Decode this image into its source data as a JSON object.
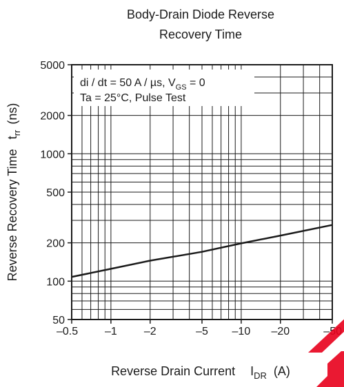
{
  "chart_data": {
    "type": "line",
    "title": [
      "Body-Drain Diode Reverse",
      "Recovery Time"
    ],
    "xlabel": "Reverse Drain Current",
    "xlabel_symbol": "I",
    "xlabel_symbol_sub": "DR",
    "xlabel_unit": "(A)",
    "ylabel": "Reverse Recovery Time",
    "ylabel_symbol": "t",
    "ylabel_symbol_sub": "rr",
    "ylabel_unit": "(ns)",
    "x_scale": "log",
    "y_scale": "log",
    "xlim": [
      -0.5,
      -50
    ],
    "ylim": [
      50,
      5000
    ],
    "x_ticks": [
      -0.5,
      -1,
      -2,
      -5,
      -10,
      -20,
      -50
    ],
    "x_tick_labels": [
      "–0.5",
      "–1",
      "–2",
      "–5",
      "–10",
      "–20",
      "–50"
    ],
    "y_ticks": [
      50,
      100,
      200,
      500,
      1000,
      2000,
      5000
    ],
    "y_tick_labels": [
      "50",
      "100",
      "200",
      "500",
      "1000",
      "2000",
      "5000"
    ],
    "grid": true,
    "annotations": {
      "line1_text": "di / dt = 50 A / µs, V",
      "line1_sub": "GS",
      "line1_tail": " = 0",
      "line2_text": "Ta = 25°C, Pulse Test"
    },
    "series": [
      {
        "x": [
          -0.5,
          -1,
          -2,
          -5,
          -10,
          -20,
          -50
        ],
        "y": [
          108,
          125,
          145,
          170,
          198,
          228,
          276
        ]
      }
    ]
  },
  "colors": {
    "line": "#1a1a1a",
    "grid": "#1a1a1a",
    "watermark": "#e8001c"
  }
}
